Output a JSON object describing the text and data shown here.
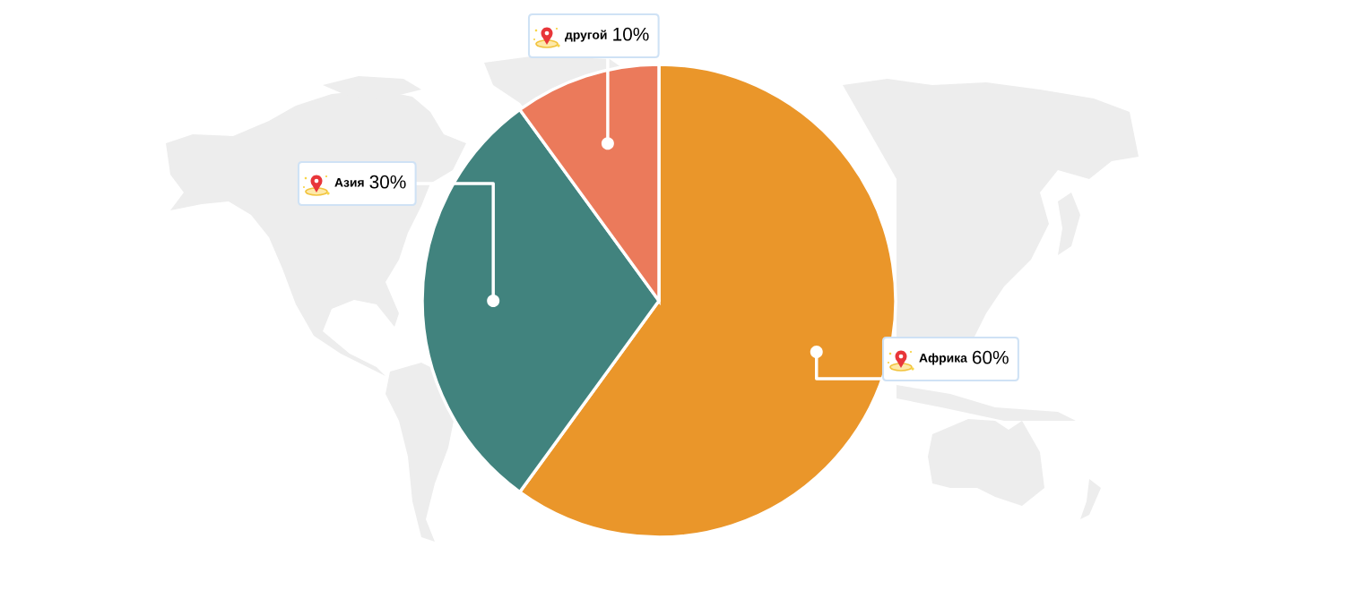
{
  "chart_data": {
    "type": "pie",
    "categories": [
      "Африка",
      "Азия",
      "другой"
    ],
    "values": [
      60,
      30,
      10
    ],
    "colors": [
      "#ea962a",
      "#41837e",
      "#eb7a5b"
    ],
    "value_labels": [
      "60%",
      "30%",
      "10%"
    ]
  }
}
